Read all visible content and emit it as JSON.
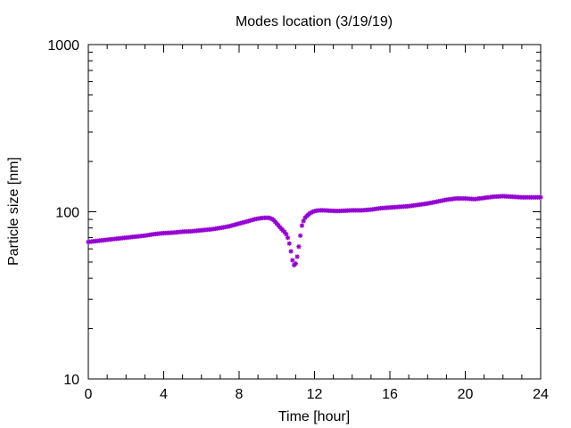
{
  "chart_data": {
    "type": "scatter",
    "title": "Modes location (3/19/19)",
    "xlabel": "Time [hour]",
    "ylabel": "Particle size [nm]",
    "xlim": [
      0,
      24
    ],
    "ylim": [
      10,
      1000
    ],
    "yscale": "log",
    "grid": false,
    "legend": "none",
    "x_ticks": [
      0,
      4,
      8,
      12,
      16,
      20,
      24
    ],
    "y_ticks": [
      10,
      100,
      1000
    ],
    "series": [
      {
        "color": "#9400d3",
        "marker": "star",
        "x": [
          0,
          0.5,
          1,
          1.5,
          2,
          2.5,
          3,
          3.5,
          4,
          4.5,
          5,
          5.5,
          6,
          6.5,
          7,
          7.5,
          8,
          8.5,
          8.8,
          9,
          9.3,
          9.6,
          9.8,
          10,
          10.2,
          10.4,
          10.55,
          10.65,
          10.75,
          10.85,
          10.95,
          11.05,
          11.15,
          11.25,
          11.35,
          11.5,
          11.7,
          11.9,
          12.1,
          12.3,
          12.5,
          12.8,
          13.2,
          13.6,
          14,
          14.5,
          15,
          15.5,
          16,
          16.5,
          17,
          17.5,
          18,
          18.5,
          19,
          19.5,
          20,
          20.5,
          21,
          21.5,
          22,
          22.5,
          23,
          23.5,
          24
        ],
        "y": [
          66,
          67,
          68,
          69,
          70,
          71,
          72,
          73.5,
          74.5,
          75,
          76,
          76.5,
          77.5,
          78.5,
          80,
          82,
          85,
          88,
          90,
          91,
          92,
          92,
          90,
          85,
          80,
          76,
          72,
          66,
          58,
          50,
          47,
          51,
          60,
          72,
          85,
          92,
          97,
          100,
          101.5,
          102,
          102,
          101.5,
          101,
          101.5,
          102,
          102,
          103,
          105,
          106,
          107,
          108,
          110,
          112,
          115,
          118,
          120,
          120,
          119,
          121,
          123,
          124,
          123,
          122,
          122,
          122
        ]
      }
    ]
  }
}
